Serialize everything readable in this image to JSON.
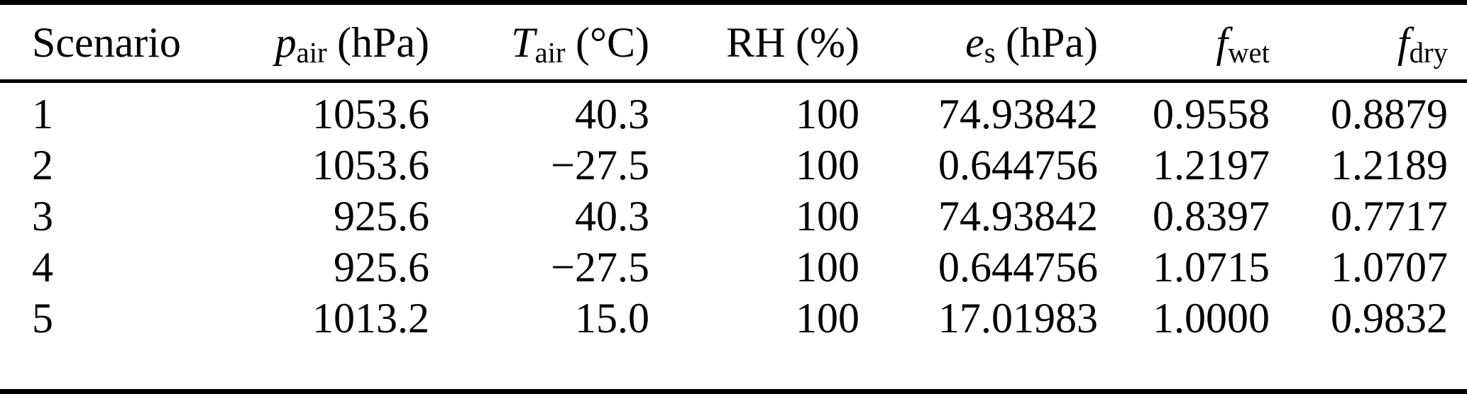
{
  "page": {
    "background_color": "#ffffff",
    "text_color": "#000000",
    "rule_color": "#000000"
  },
  "table": {
    "columns": [
      {
        "id": "scenario",
        "text": "Scenario",
        "var": "",
        "sub": "",
        "unit": ""
      },
      {
        "id": "p-air",
        "text": "",
        "var": "p",
        "sub": "air",
        "unit": "(hPa)"
      },
      {
        "id": "t-air",
        "text": "",
        "var": "T",
        "sub": "air",
        "unit": "(°C)"
      },
      {
        "id": "rh",
        "text": "RH",
        "var": "",
        "sub": "",
        "unit": "(%)"
      },
      {
        "id": "e-s",
        "text": "",
        "var": "e",
        "sub": "s",
        "unit": "(hPa)"
      },
      {
        "id": "f-wet",
        "text": "",
        "var": "f",
        "sub": "wet",
        "unit": ""
      },
      {
        "id": "f-dry",
        "text": "",
        "var": "f",
        "sub": "dry",
        "unit": ""
      }
    ],
    "rows": [
      [
        "1",
        "1053.6",
        "40.3",
        "100",
        "74.93842",
        "0.9558",
        "0.8879"
      ],
      [
        "2",
        "1053.6",
        "−27.5",
        "100",
        "0.644756",
        "1.2197",
        "1.2189"
      ],
      [
        "3",
        "925.6",
        "40.3",
        "100",
        "74.93842",
        "0.8397",
        "0.7717"
      ],
      [
        "4",
        "925.6",
        "−27.5",
        "100",
        "0.644756",
        "1.0715",
        "1.0707"
      ],
      [
        "5",
        "1013.2",
        "15.0",
        "100",
        "17.01983",
        "1.0000",
        "0.9832"
      ]
    ]
  }
}
